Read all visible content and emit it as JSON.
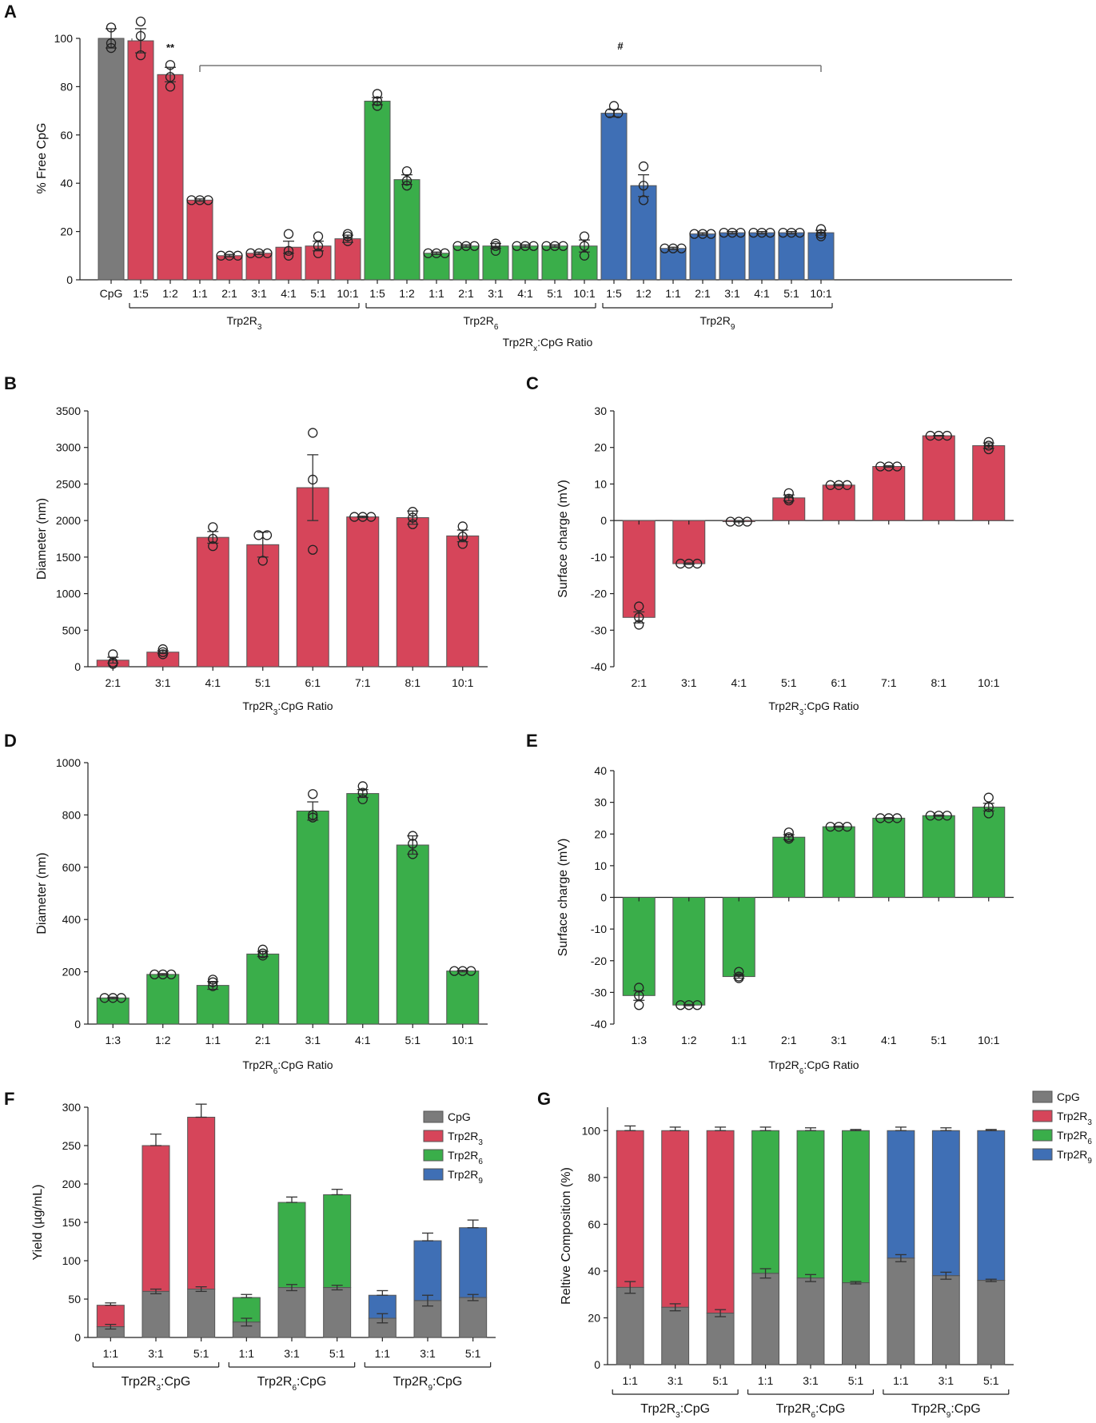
{
  "panel_letters": [
    "A",
    "B",
    "C",
    "D",
    "E",
    "F",
    "G"
  ],
  "colors": {
    "CpG": "#7b7b7b",
    "Trp2R3": "#d6455a",
    "Trp2R6": "#3aae4a",
    "Trp2R9": "#3f6fb5"
  },
  "chart_data": [
    {
      "panel": "A",
      "type": "bar",
      "ylabel": "% Free CpG",
      "xlabel": "Trp2Rx:CpG Ratio",
      "ylim": [
        0,
        100
      ],
      "yticks": [
        0,
        20,
        40,
        60,
        80,
        100
      ],
      "control": {
        "label": "CpG",
        "value": 100,
        "err": 4,
        "points": [
          104.5,
          98,
          96
        ]
      },
      "groups": [
        {
          "name": "Trp2R3",
          "base": "Trp2R",
          "sub": "3",
          "color": "Trp2R3",
          "categories": [
            "1:5",
            "1:2",
            "1:1",
            "2:1",
            "3:1",
            "4:1",
            "5:1",
            "10:1"
          ],
          "values": [
            99,
            85,
            33,
            10,
            11,
            13.5,
            14,
            17
          ],
          "err": [
            5,
            3,
            0.5,
            0.5,
            0.5,
            2.5,
            2,
            1.5
          ],
          "points": [
            [
              107,
              101,
              93
            ],
            [
              89,
              84,
              80
            ],
            [
              33,
              33,
              33
            ],
            [
              10,
              10,
              10
            ],
            [
              11,
              11,
              11
            ],
            [
              19,
              12,
              10
            ],
            [
              18,
              14,
              11
            ],
            [
              19,
              18,
              16
            ]
          ]
        },
        {
          "name": "Trp2R6",
          "base": "Trp2R",
          "sub": "6",
          "color": "Trp2R6",
          "categories": [
            "1:5",
            "1:2",
            "1:1",
            "2:1",
            "3:1",
            "4:1",
            "5:1",
            "10:1"
          ],
          "values": [
            74,
            41.5,
            11,
            14,
            14,
            14,
            14,
            14
          ],
          "err": [
            1.5,
            2,
            0.5,
            0.5,
            1,
            0.5,
            0.5,
            2.5
          ],
          "points": [
            [
              77,
              74,
              72
            ],
            [
              45,
              41,
              39
            ],
            [
              11,
              11,
              11
            ],
            [
              14,
              14,
              14
            ],
            [
              15,
              14,
              12
            ],
            [
              14,
              14,
              14
            ],
            [
              14,
              14,
              14
            ],
            [
              18,
              14,
              10
            ]
          ]
        },
        {
          "name": "Trp2R9",
          "base": "Trp2R",
          "sub": "9",
          "color": "Trp2R9",
          "categories": [
            "1:5",
            "1:2",
            "1:1",
            "2:1",
            "3:1",
            "4:1",
            "5:1",
            "10:1"
          ],
          "values": [
            69,
            39,
            13,
            19,
            19.5,
            19.5,
            19.5,
            19.5
          ],
          "err": [
            1.5,
            4.5,
            0.5,
            0.5,
            0.5,
            0.5,
            0.5,
            1
          ],
          "points": [
            [
              72,
              69,
              69
            ],
            [
              47,
              39,
              33
            ],
            [
              13,
              13,
              13
            ],
            [
              19,
              19,
              19
            ],
            [
              19.5,
              19.5,
              19.5
            ],
            [
              19.5,
              19.5,
              19.5
            ],
            [
              19.5,
              19.5,
              19.5
            ],
            [
              21,
              19,
              18
            ]
          ]
        }
      ],
      "annotations": [
        {
          "text": "**",
          "category": "1:2"
        },
        {
          "text": "#",
          "span": "Trp2R3 1:1 to Trp2R9 10:1"
        }
      ]
    },
    {
      "panel": "B",
      "type": "bar",
      "color": "Trp2R3",
      "ylabel": "Diameter (nm)",
      "xlabel": "Trp2R3:CpG Ratio",
      "ylim": [
        0,
        3500
      ],
      "yticks": [
        0,
        500,
        1000,
        1500,
        2000,
        2500,
        3000,
        3500
      ],
      "categories": [
        "2:1",
        "3:1",
        "4:1",
        "5:1",
        "6:1",
        "7:1",
        "8:1",
        "10:1"
      ],
      "values": [
        90,
        200,
        1770,
        1670,
        2450,
        2050,
        2040,
        1790
      ],
      "err": [
        40,
        20,
        80,
        170,
        450,
        10,
        90,
        80
      ],
      "points": [
        [
          170,
          60,
          40
        ],
        [
          240,
          200,
          170
        ],
        [
          1910,
          1750,
          1650
        ],
        [
          1800,
          1800,
          1450
        ],
        [
          3200,
          2560,
          1600
        ],
        [
          2050,
          2050,
          2050
        ],
        [
          2120,
          2040,
          1950
        ],
        [
          1920,
          1780,
          1680
        ]
      ]
    },
    {
      "panel": "C",
      "type": "bar",
      "color": "Trp2R3",
      "ylabel": "Surface charge (mV)",
      "xlabel": "Trp2R3:CpG Ratio",
      "ylim": [
        -40,
        30
      ],
      "yticks": [
        -40,
        -30,
        -20,
        -10,
        0,
        10,
        20,
        30
      ],
      "categories": [
        "2:1",
        "3:1",
        "4:1",
        "5:1",
        "6:1",
        "7:1",
        "8:1",
        "10:1"
      ],
      "values": [
        -26.5,
        -11.8,
        -0.3,
        6.2,
        9.7,
        14.8,
        23.2,
        20.5
      ],
      "err": [
        1.5,
        0.2,
        0.1,
        0.8,
        0.2,
        0.2,
        0.1,
        0.7
      ],
      "points": [
        [
          -23.5,
          -26.5,
          -28.5
        ],
        [
          -11.8,
          -11.8,
          -11.8
        ],
        [
          -0.3,
          -0.3,
          -0.3
        ],
        [
          7.5,
          6,
          5.5
        ],
        [
          9.7,
          9.7,
          9.7
        ],
        [
          14.8,
          14.8,
          14.8
        ],
        [
          23.2,
          23.2,
          23.2
        ],
        [
          21.5,
          20.5,
          19.5
        ]
      ]
    },
    {
      "panel": "D",
      "type": "bar",
      "color": "Trp2R6",
      "ylabel": "Diameter (nm)",
      "xlabel": "Trp2R6:CpG Ratio",
      "ylim": [
        0,
        1000
      ],
      "yticks": [
        0,
        200,
        400,
        600,
        800,
        1000
      ],
      "categories": [
        "1:3",
        "1:2",
        "1:1",
        "2:1",
        "3:1",
        "4:1",
        "5:1",
        "10:1"
      ],
      "values": [
        100,
        190,
        148,
        268,
        815,
        882,
        685,
        203
      ],
      "err": [
        3,
        3,
        15,
        10,
        35,
        15,
        35,
        3
      ],
      "points": [
        [
          100,
          100,
          100
        ],
        [
          190,
          190,
          190
        ],
        [
          170,
          160,
          145
        ],
        [
          285,
          270,
          262
        ],
        [
          880,
          800,
          790
        ],
        [
          910,
          885,
          860
        ],
        [
          720,
          690,
          650
        ],
        [
          203,
          203,
          203
        ]
      ]
    },
    {
      "panel": "E",
      "type": "bar",
      "color": "Trp2R6",
      "ylabel": "Surface charge (mV)",
      "xlabel": "Trp2R6:CpG Ratio",
      "ylim": [
        -40,
        40
      ],
      "yticks": [
        -40,
        -30,
        -20,
        -10,
        0,
        10,
        20,
        30,
        40
      ],
      "categories": [
        "1:3",
        "1:2",
        "1:1",
        "2:1",
        "3:1",
        "4:1",
        "5:1",
        "10:1"
      ],
      "values": [
        -31,
        -34,
        -25,
        19,
        22.3,
        25,
        25.8,
        28.5
      ],
      "err": [
        1.5,
        0.2,
        0.5,
        0.8,
        0.2,
        0.2,
        0.2,
        1.2
      ],
      "points": [
        [
          -28.5,
          -31,
          -34
        ],
        [
          -34,
          -34,
          -34
        ],
        [
          -23.5,
          -25,
          -25.5
        ],
        [
          20.5,
          19,
          18.5
        ],
        [
          22.3,
          22.3,
          22.3
        ],
        [
          25,
          25,
          25
        ],
        [
          25.8,
          25.8,
          25.8
        ],
        [
          31.5,
          28.5,
          26.5
        ]
      ]
    },
    {
      "panel": "F",
      "type": "bar",
      "stacked": true,
      "ylabel": "Yield (µg/mL)",
      "ylim": [
        0,
        300
      ],
      "yticks": [
        0,
        50,
        100,
        150,
        200,
        250,
        300
      ],
      "legend": [
        {
          "key": "CpG",
          "base": "CpG",
          "sub": ""
        },
        {
          "key": "Trp2R3",
          "base": "Trp2R",
          "sub": "3"
        },
        {
          "key": "Trp2R6",
          "base": "Trp2R",
          "sub": "6"
        },
        {
          "key": "Trp2R9",
          "base": "Trp2R",
          "sub": "9"
        }
      ],
      "groups": [
        {
          "base": "Trp2R",
          "sub": "3",
          "suffix": ":CpG",
          "color": "Trp2R3",
          "categories": [
            "1:1",
            "3:1",
            "5:1"
          ],
          "cpg": [
            14,
            60,
            63
          ],
          "cpg_err": [
            3,
            3,
            3
          ],
          "peptide": [
            28,
            190,
            224
          ],
          "total_err": [
            3,
            15,
            17
          ]
        },
        {
          "base": "Trp2R",
          "sub": "6",
          "suffix": ":CpG",
          "color": "Trp2R6",
          "categories": [
            "1:1",
            "3:1",
            "5:1"
          ],
          "cpg": [
            20,
            65,
            65
          ],
          "cpg_err": [
            5,
            4,
            3
          ],
          "peptide": [
            32,
            111,
            121
          ],
          "total_err": [
            4,
            7,
            7
          ]
        },
        {
          "base": "Trp2R",
          "sub": "9",
          "suffix": ":CpG",
          "color": "Trp2R9",
          "categories": [
            "1:1",
            "3:1",
            "5:1"
          ],
          "cpg": [
            25,
            48,
            52
          ],
          "cpg_err": [
            6,
            7,
            4
          ],
          "peptide": [
            30,
            78,
            91
          ],
          "total_err": [
            6,
            10,
            10
          ]
        }
      ]
    },
    {
      "panel": "G",
      "type": "bar",
      "stacked": true,
      "ylabel": "Reltive Composition (%)",
      "ylim": [
        0,
        110
      ],
      "yticks": [
        0,
        20,
        40,
        60,
        80,
        100
      ],
      "legend": [
        {
          "key": "CpG",
          "base": "CpG",
          "sub": ""
        },
        {
          "key": "Trp2R3",
          "base": "Trp2R",
          "sub": "3"
        },
        {
          "key": "Trp2R6",
          "base": "Trp2R",
          "sub": "6"
        },
        {
          "key": "Trp2R9",
          "base": "Trp2R",
          "sub": "9"
        }
      ],
      "groups": [
        {
          "base": "Trp2R",
          "sub": "3",
          "suffix": ":CpG",
          "color": "Trp2R3",
          "categories": [
            "1:1",
            "3:1",
            "5:1"
          ],
          "cpg": [
            33,
            24.5,
            22
          ],
          "cpg_err": [
            2.5,
            1.5,
            1.5
          ],
          "peptide": [
            67,
            75.5,
            78
          ],
          "total_err": [
            2,
            1.5,
            1.5
          ]
        },
        {
          "base": "Trp2R",
          "sub": "6",
          "suffix": ":CpG",
          "color": "Trp2R6",
          "categories": [
            "1:1",
            "3:1",
            "5:1"
          ],
          "cpg": [
            39,
            37,
            35
          ],
          "cpg_err": [
            2,
            1.5,
            0.5
          ],
          "peptide": [
            61,
            63,
            65
          ],
          "total_err": [
            1.5,
            1.2,
            0.5
          ]
        },
        {
          "base": "Trp2R",
          "sub": "9",
          "suffix": ":CpG",
          "color": "Trp2R9",
          "categories": [
            "1:1",
            "3:1",
            "5:1"
          ],
          "cpg": [
            45.5,
            38,
            36
          ],
          "cpg_err": [
            1.5,
            1.5,
            0.5
          ],
          "peptide": [
            54.5,
            62,
            64
          ],
          "total_err": [
            1.5,
            1.2,
            0.5
          ]
        }
      ]
    }
  ]
}
